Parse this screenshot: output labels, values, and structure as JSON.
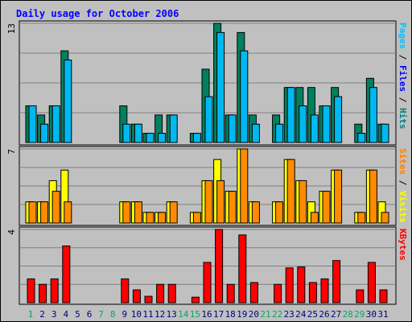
{
  "chart_data": {
    "type": "bar",
    "title": "Daily usage for October 2006",
    "days": [
      1,
      2,
      3,
      4,
      5,
      6,
      7,
      8,
      9,
      10,
      11,
      12,
      13,
      14,
      15,
      16,
      17,
      18,
      19,
      20,
      21,
      22,
      23,
      24,
      25,
      26,
      27,
      28,
      29,
      30,
      31
    ],
    "weekend_days": [
      1,
      7,
      8,
      14,
      15,
      21,
      22,
      28,
      29
    ],
    "panels": [
      {
        "id": "top",
        "max_label": "13",
        "ylim": [
          0,
          13
        ],
        "right_label_parts": [
          {
            "text": "Pages",
            "color": "#00c0ff"
          },
          {
            "text": " / ",
            "color": "#000000"
          },
          {
            "text": "Files",
            "color": "#0000ff"
          },
          {
            "text": " / ",
            "color": "#000000"
          },
          {
            "text": "Hits",
            "color": "#008080"
          }
        ],
        "series": [
          {
            "name": "Hits",
            "color": "#008060",
            "values": [
              4,
              3,
              4,
              10,
              0,
              0,
              0,
              0,
              4,
              2,
              1,
              3,
              3,
              0,
              1,
              8,
              13,
              3,
              12,
              3,
              0,
              3,
              6,
              6,
              6,
              4,
              6,
              0,
              2,
              7,
              2
            ]
          },
          {
            "name": "Pages",
            "color": "#00b8f0",
            "values": [
              4,
              2,
              4,
              9,
              0,
              0,
              0,
              0,
              2,
              2,
              1,
              1,
              3,
              0,
              1,
              5,
              12,
              3,
              10,
              2,
              0,
              2,
              6,
              4,
              3,
              4,
              5,
              0,
              1,
              6,
              2
            ]
          }
        ]
      },
      {
        "id": "middle",
        "max_label": "7",
        "ylim": [
          0,
          7
        ],
        "right_label_parts": [
          {
            "text": "Sites",
            "color": "#ff8000"
          },
          {
            "text": " / ",
            "color": "#000000"
          },
          {
            "text": "Visits",
            "color": "#ffff00"
          }
        ],
        "series": [
          {
            "name": "Visits",
            "color": "#ffff00",
            "values": [
              2,
              2,
              4,
              5,
              0,
              0,
              0,
              0,
              2,
              2,
              1,
              1,
              2,
              0,
              1,
              4,
              6,
              3,
              7,
              2,
              0,
              2,
              6,
              4,
              2,
              3,
              5,
              0,
              1,
              5,
              2
            ]
          },
          {
            "name": "Sites",
            "color": "#ff8c00",
            "values": [
              2,
              2,
              3,
              2,
              0,
              0,
              0,
              0,
              2,
              2,
              1,
              1,
              2,
              0,
              1,
              4,
              4,
              3,
              7,
              2,
              0,
              2,
              6,
              4,
              1,
              3,
              5,
              0,
              1,
              5,
              1
            ]
          }
        ]
      },
      {
        "id": "bottom",
        "max_label": "4",
        "ylim": [
          0,
          4
        ],
        "right_label_parts": [
          {
            "text": "KBytes",
            "color": "#ff0000"
          }
        ],
        "series": [
          {
            "name": "KBytes",
            "color": "#ff0000",
            "values": [
              1.3,
              1.0,
              1.3,
              3.1,
              0,
              0,
              0,
              0,
              1.3,
              0.7,
              0.35,
              1.0,
              1.0,
              0,
              0.3,
              2.2,
              4.0,
              1.0,
              3.7,
              1.1,
              0,
              1.0,
              1.9,
              1.95,
              1.1,
              1.3,
              2.3,
              0,
              0.7,
              2.2,
              0.7
            ]
          }
        ]
      }
    ],
    "colors": {
      "background": "#c0c0c0",
      "gridline": "#808080",
      "title": "#0000ff",
      "weekday_label": "#000080",
      "weekend_label": "#00aa60"
    }
  }
}
